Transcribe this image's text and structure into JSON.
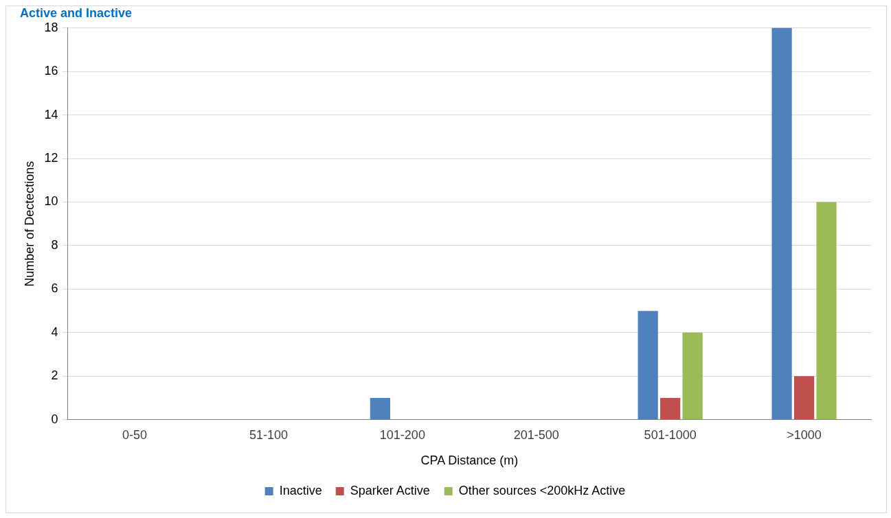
{
  "chart_data": {
    "type": "bar",
    "title": "Active and Inactive",
    "xlabel": "CPA Distance (m)",
    "ylabel": "Number of Dectections",
    "categories": [
      "0-50",
      "51-100",
      "101-200",
      "201-500",
      "501-1000",
      ">1000"
    ],
    "series": [
      {
        "name": "Inactive",
        "color": "#4f81bd",
        "values": [
          0,
          0,
          1,
          0,
          5,
          18
        ]
      },
      {
        "name": "Sparker Active",
        "color": "#c0504d",
        "values": [
          0,
          0,
          0,
          0,
          1,
          2
        ]
      },
      {
        "name": "Other sources <200kHz Active",
        "color": "#9bbb59",
        "values": [
          0,
          0,
          0,
          0,
          4,
          10
        ]
      }
    ],
    "ylim": [
      0,
      18
    ],
    "yticks": [
      0,
      2,
      4,
      6,
      8,
      10,
      12,
      14,
      16,
      18
    ],
    "grid": "y",
    "legend": "bottom"
  }
}
